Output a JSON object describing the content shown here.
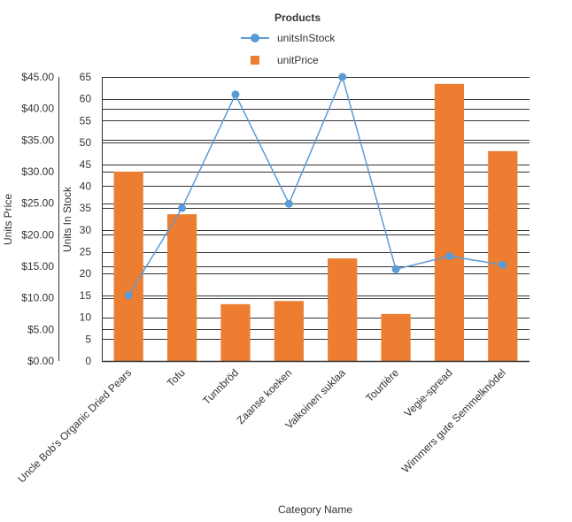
{
  "chart_data": {
    "type": "bar",
    "title": "Products",
    "xlabel": "Category Name",
    "categories": [
      "Uncle Bob's Organic Dried Pears",
      "Tofu",
      "Tunnbröd",
      "Zaanse koeken",
      "Valkoinen suklaa",
      "Tourtière",
      "Vegie-spread",
      "Wimmers gute Semmelknödel"
    ],
    "series": [
      {
        "name": "unitPrice",
        "kind": "bar",
        "axis": "left",
        "values": [
          30.0,
          23.25,
          9.0,
          9.5,
          16.25,
          7.45,
          43.9,
          33.25
        ]
      },
      {
        "name": "unitsInStock",
        "kind": "line",
        "axis": "right",
        "values": [
          15,
          35,
          61,
          36,
          65,
          21,
          24,
          22
        ]
      }
    ],
    "y_left": {
      "label": "Units Price",
      "min": 0,
      "max": 45,
      "ticks": [
        "$0.00",
        "$5.00",
        "$10.00",
        "$15.00",
        "$20.00",
        "$25.00",
        "$30.00",
        "$35.00",
        "$40.00",
        "$45.00"
      ]
    },
    "y_right": {
      "label": "Units In Stock",
      "min": 0,
      "max": 65,
      "ticks": [
        "0",
        "5",
        "10",
        "15",
        "20",
        "25",
        "30",
        "35",
        "40",
        "45",
        "50",
        "55",
        "60",
        "65"
      ]
    },
    "legend": {
      "position": "top",
      "items": [
        "unitsInStock",
        "unitPrice"
      ]
    },
    "colors": {
      "bar": "#ed7d31",
      "line": "#5b9bd5",
      "grid": "#333333",
      "text": "#333333"
    },
    "grid": true
  }
}
